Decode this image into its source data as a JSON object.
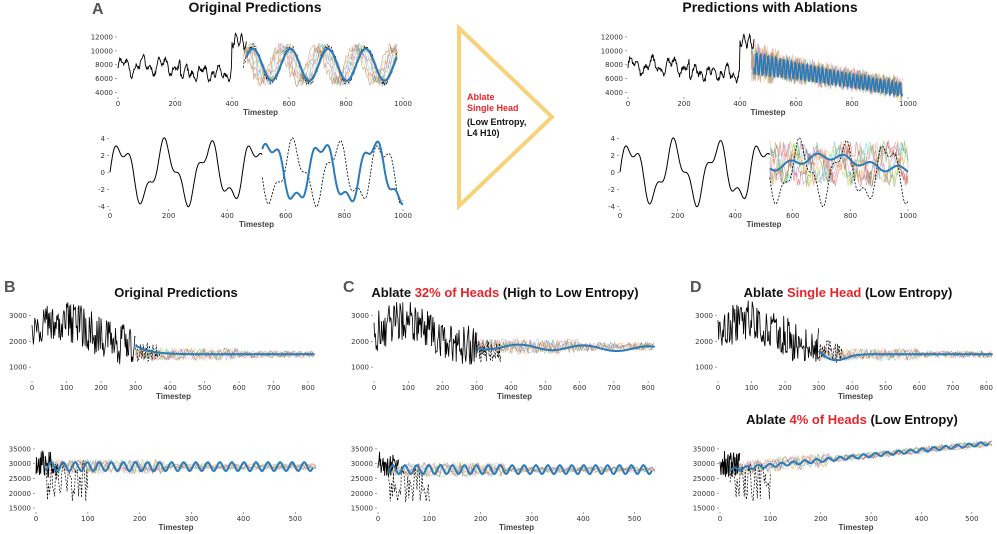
{
  "labels": {
    "A": "A",
    "B": "B",
    "C": "C",
    "D": "D"
  },
  "titles": {
    "A_left": "Original Predictions",
    "A_right": "Predictions with Ablations",
    "B": "Original Predictions",
    "C_pre": "Ablate ",
    "C_red": "32% of Heads",
    "C_post": " (High to Low Entropy)",
    "D_pre": "Ablate ",
    "D_red": "Single Head",
    "D_post": " (Low Entropy)",
    "D2_pre": "Ablate ",
    "D2_red": "4% of Heads",
    "D2_post": " (Low Entropy)"
  },
  "arrow": {
    "line1": "Ablate",
    "line2": "Single Head",
    "line3": "(Low Entropy,",
    "line4": "L4 H10)",
    "color": "#f8d27a"
  },
  "colors": {
    "history": "#000000",
    "prediction": "#2b7bba",
    "accent": "#e4262b"
  },
  "chart_data": [
    {
      "id": "A1",
      "type": "line",
      "title": "Original Predictions",
      "xlabel": "Timestep",
      "ylabel": "",
      "xlim": [
        0,
        1000
      ],
      "xticks": [
        0,
        200,
        400,
        600,
        800,
        1000
      ],
      "ylim": [
        3500,
        13000
      ],
      "yticks": [
        4000,
        6000,
        8000,
        10000,
        12000
      ],
      "series": [
        {
          "name": "history",
          "x_range": [
            0,
            450
          ]
        },
        {
          "name": "ground truth",
          "x_range": [
            450,
            1000
          ]
        },
        {
          "name": "mean prediction",
          "x_range": [
            450,
            1000
          ]
        }
      ]
    },
    {
      "id": "A2",
      "type": "line",
      "xlabel": "Timestep",
      "xlim": [
        0,
        1000
      ],
      "xticks": [
        0,
        200,
        400,
        600,
        800,
        1000
      ],
      "ylim": [
        -4.2,
        4.5
      ],
      "yticks": [
        -4,
        -2,
        0,
        2,
        4
      ],
      "series": [
        {
          "name": "history",
          "x_range": [
            0,
            520
          ]
        },
        {
          "name": "ground truth",
          "x_range": [
            520,
            1000
          ]
        },
        {
          "name": "mean prediction",
          "x_range": [
            520,
            1000
          ]
        }
      ]
    },
    {
      "id": "A3",
      "type": "line",
      "title": "Predictions with Ablations",
      "xlabel": "Timestep",
      "xlim": [
        0,
        1000
      ],
      "xticks": [
        0,
        200,
        400,
        600,
        800,
        1000
      ],
      "ylim": [
        3500,
        13000
      ],
      "yticks": [
        4000,
        6000,
        8000,
        10000,
        12000
      ],
      "series": [
        {
          "name": "history",
          "x_range": [
            0,
            450
          ]
        },
        {
          "name": "mean prediction",
          "x_range": [
            450,
            1000
          ]
        }
      ]
    },
    {
      "id": "A4",
      "type": "line",
      "xlabel": "Timestep",
      "xlim": [
        0,
        1000
      ],
      "xticks": [
        0,
        200,
        400,
        600,
        800,
        1000
      ],
      "ylim": [
        -4.2,
        4.5
      ],
      "yticks": [
        -4,
        -2,
        0,
        2,
        4
      ],
      "series": [
        {
          "name": "history",
          "x_range": [
            0,
            520
          ]
        },
        {
          "name": "mean prediction",
          "x_range": [
            520,
            1000
          ]
        }
      ]
    },
    {
      "id": "B1",
      "type": "line",
      "title": "Original Predictions",
      "xlabel": "Timestep",
      "xlim": [
        0,
        820
      ],
      "xticks": [
        0,
        100,
        200,
        300,
        400,
        500,
        600,
        700,
        800
      ],
      "ylim": [
        500,
        3300
      ],
      "yticks": [
        1000,
        2000,
        3000
      ],
      "series": [
        {
          "name": "history",
          "x_range": [
            0,
            300
          ]
        },
        {
          "name": "mean prediction",
          "x_range": [
            300,
            820
          ],
          "level": 1500
        }
      ]
    },
    {
      "id": "B2",
      "type": "line",
      "xlabel": "Timestep",
      "xlim": [
        0,
        540
      ],
      "xticks": [
        0,
        100,
        200,
        300,
        400,
        500
      ],
      "ylim": [
        14000,
        38000
      ],
      "yticks": [
        15000,
        20000,
        25000,
        30000,
        35000
      ],
      "series": [
        {
          "name": "history",
          "x_range": [
            0,
            60
          ]
        },
        {
          "name": "mean prediction",
          "x_range": [
            20,
            540
          ],
          "level": 29000
        }
      ]
    },
    {
      "id": "C1",
      "type": "line",
      "title": "Ablate 32% of Heads (High to Low Entropy)",
      "xlabel": "Timestep",
      "xlim": [
        0,
        820
      ],
      "xticks": [
        0,
        100,
        200,
        300,
        400,
        500,
        600,
        700,
        800
      ],
      "ylim": [
        500,
        3300
      ],
      "yticks": [
        1000,
        2000,
        3000
      ],
      "series": [
        {
          "name": "history",
          "x_range": [
            0,
            300
          ]
        },
        {
          "name": "mean prediction",
          "x_range": [
            300,
            820
          ],
          "level": 1800
        }
      ]
    },
    {
      "id": "C2",
      "type": "line",
      "xlabel": "Timestep",
      "xlim": [
        0,
        540
      ],
      "xticks": [
        0,
        100,
        200,
        300,
        400,
        500
      ],
      "ylim": [
        14000,
        38000
      ],
      "yticks": [
        15000,
        20000,
        25000,
        30000,
        35000
      ],
      "series": [
        {
          "name": "history",
          "x_range": [
            0,
            60
          ]
        },
        {
          "name": "mean prediction",
          "x_range": [
            20,
            540
          ],
          "level": 28000
        }
      ]
    },
    {
      "id": "D1",
      "type": "line",
      "title": "Ablate Single Head (Low Entropy)",
      "xlabel": "Timestep",
      "xlim": [
        0,
        820
      ],
      "xticks": [
        0,
        100,
        200,
        300,
        400,
        500,
        600,
        700,
        800
      ],
      "ylim": [
        500,
        3300
      ],
      "yticks": [
        1000,
        2000,
        3000
      ],
      "series": [
        {
          "name": "history",
          "x_range": [
            0,
            300
          ]
        },
        {
          "name": "mean prediction",
          "x_range": [
            300,
            820
          ],
          "level": 1500
        }
      ]
    },
    {
      "id": "D2",
      "type": "line",
      "title": "Ablate 4% of Heads (Low Entropy)",
      "xlabel": "Timestep",
      "xlim": [
        0,
        540
      ],
      "xticks": [
        0,
        100,
        200,
        300,
        400,
        500
      ],
      "ylim": [
        14000,
        38000
      ],
      "yticks": [
        15000,
        20000,
        25000,
        30000,
        35000
      ],
      "series": [
        {
          "name": "history",
          "x_range": [
            0,
            60
          ]
        },
        {
          "name": "mean prediction",
          "x_range": [
            20,
            540
          ],
          "start": 28000,
          "end": 37000
        }
      ]
    }
  ]
}
